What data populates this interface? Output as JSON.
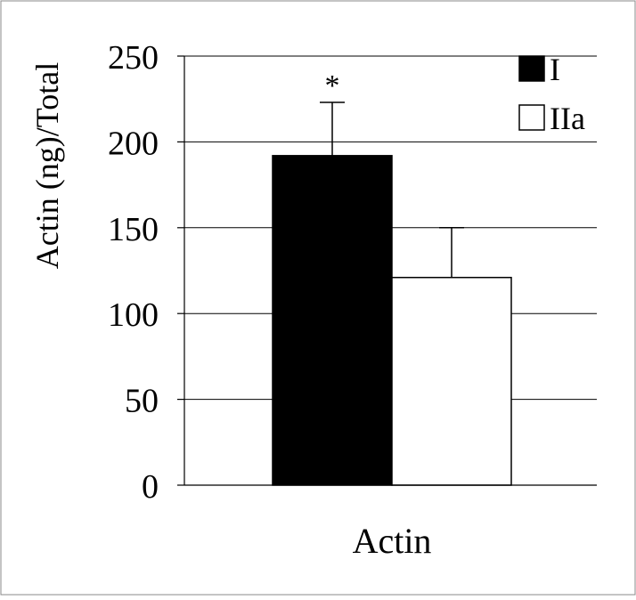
{
  "chart_data": {
    "type": "bar",
    "title": "",
    "xlabel": "Actin",
    "ylabel": "Actin (ng)/Total",
    "categories": [
      "Actin"
    ],
    "ylim": [
      0,
      250
    ],
    "yticks": [
      0,
      50,
      100,
      150,
      200,
      250
    ],
    "grid": true,
    "legend_position": "top-right",
    "series": [
      {
        "name": "I",
        "values": [
          192
        ],
        "error": [
          31
        ],
        "color": "#000000",
        "annotation": "*"
      },
      {
        "name": "IIa",
        "values": [
          121
        ],
        "error": [
          29
        ],
        "color": "#ffffff"
      }
    ]
  }
}
